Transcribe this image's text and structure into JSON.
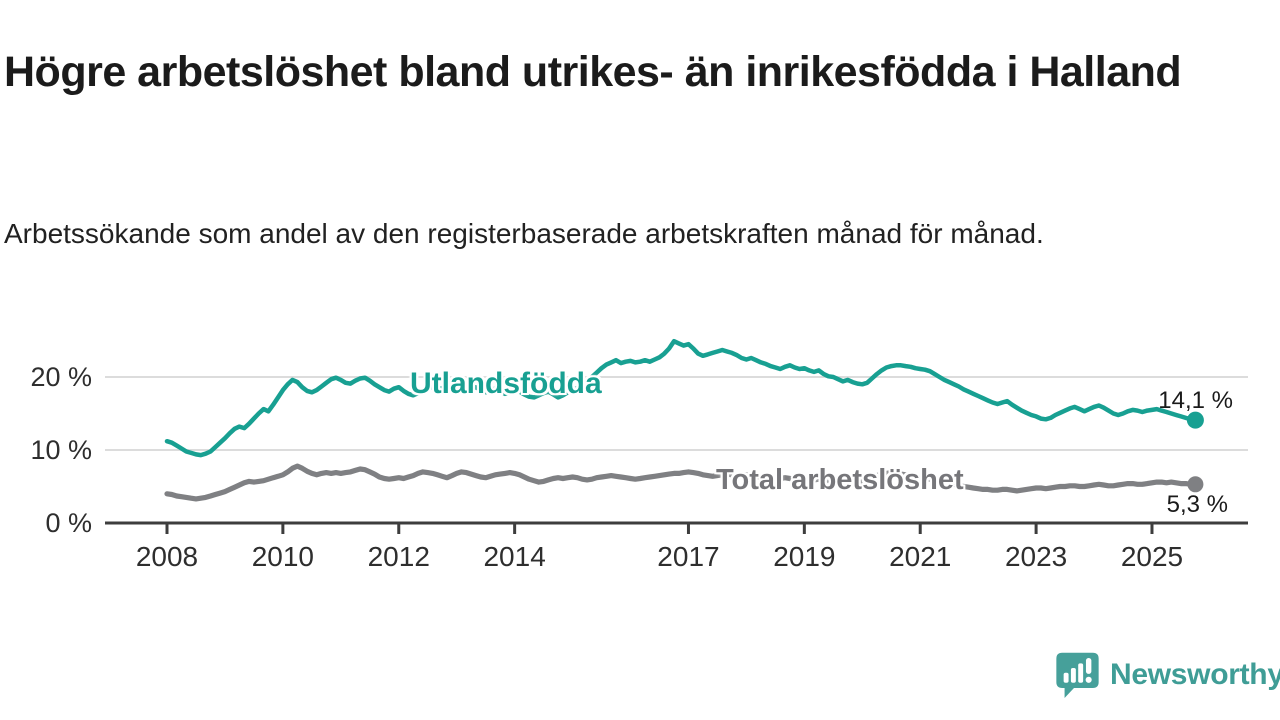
{
  "header": {
    "title": "Högre arbetslöshet bland utrikes- än inrikesfödda i Halland",
    "subtitle": "Arbetssökande som andel av den registerbaserade arbetskraften månad för månad."
  },
  "chart_data": {
    "type": "line",
    "title": "Högre arbetslöshet bland utrikes- än inrikesfödda i Halland",
    "subtitle": "Arbetssökande som andel av den registerbaserade arbetskraften månad för månad.",
    "unit": "%",
    "grid": "horizontal",
    "legend": "inline-labels",
    "x_axis": {
      "tick_labels": [
        "2008",
        "2010",
        "2012",
        "2014",
        "2017",
        "2019",
        "2021",
        "2023",
        "2025"
      ],
      "tick_years": [
        2008,
        2010,
        2012,
        2014,
        2017,
        2019,
        2021,
        2023,
        2025
      ],
      "range": [
        2007.9,
        2026.0
      ],
      "frequency": "monthly"
    },
    "y_axis": {
      "tick_labels": [
        "20 %",
        "10 %",
        "0 %"
      ],
      "tick_values": [
        20,
        10,
        0
      ],
      "range": [
        0,
        26
      ]
    },
    "series": [
      {
        "label": "Utlandsfödda",
        "color": "#18a092",
        "end_label": "14,1 %",
        "last_value": 14.1,
        "first_year": 2008,
        "frequency": "monthly",
        "values": [
          11.2,
          11.0,
          10.6,
          10.2,
          9.8,
          9.6,
          9.4,
          9.3,
          9.5,
          9.8,
          10.4,
          11.0,
          11.6,
          12.3,
          12.9,
          13.2,
          13.0,
          13.6,
          14.3,
          15.0,
          15.6,
          15.3,
          16.2,
          17.2,
          18.2,
          19.0,
          19.6,
          19.3,
          18.6,
          18.1,
          17.9,
          18.2,
          18.7,
          19.2,
          19.7,
          19.9,
          19.6,
          19.2,
          19.1,
          19.5,
          19.8,
          19.9,
          19.5,
          19.0,
          18.6,
          18.2,
          18.0,
          18.4,
          18.6,
          18.1,
          17.7,
          17.5,
          17.8,
          18.2,
          18.5,
          18.6,
          18.3,
          18.5,
          18.8,
          18.6,
          18.9,
          19.0,
          18.7,
          18.4,
          18.6,
          18.2,
          17.9,
          18.2,
          18.4,
          18.1,
          17.7,
          18.0,
          18.2,
          18.0,
          17.6,
          17.3,
          17.2,
          17.5,
          17.8,
          18.0,
          17.6,
          17.2,
          17.5,
          17.9,
          18.2,
          18.5,
          18.9,
          19.4,
          20.0,
          20.6,
          21.2,
          21.7,
          22.0,
          22.3,
          21.9,
          22.1,
          22.2,
          22.0,
          22.1,
          22.3,
          22.1,
          22.4,
          22.7,
          23.2,
          23.9,
          24.9,
          24.6,
          24.3,
          24.5,
          23.9,
          23.2,
          22.9,
          23.1,
          23.3,
          23.5,
          23.7,
          23.5,
          23.3,
          23.0,
          22.6,
          22.4,
          22.6,
          22.3,
          22.0,
          21.8,
          21.5,
          21.3,
          21.1,
          21.4,
          21.6,
          21.3,
          21.1,
          21.2,
          20.9,
          20.7,
          20.9,
          20.4,
          20.1,
          20.0,
          19.7,
          19.4,
          19.6,
          19.3,
          19.1,
          19.0,
          19.2,
          19.8,
          20.4,
          20.9,
          21.3,
          21.5,
          21.6,
          21.6,
          21.5,
          21.4,
          21.2,
          21.1,
          21.0,
          20.8,
          20.4,
          20.0,
          19.6,
          19.3,
          19.0,
          18.7,
          18.3,
          18.0,
          17.7,
          17.4,
          17.1,
          16.8,
          16.5,
          16.3,
          16.5,
          16.7,
          16.2,
          15.8,
          15.4,
          15.1,
          14.8,
          14.6,
          14.3,
          14.2,
          14.4,
          14.8,
          15.1,
          15.4,
          15.7,
          15.9,
          15.6,
          15.3,
          15.6,
          15.9,
          16.1,
          15.8,
          15.4,
          15.0,
          14.8,
          15.0,
          15.3,
          15.5,
          15.4,
          15.2,
          15.4,
          15.5,
          15.6,
          15.4,
          15.2,
          15.0,
          14.8,
          14.6,
          14.4,
          14.2,
          14.1
        ]
      },
      {
        "label": "Total arbetslöshet",
        "color": "#7f8083",
        "end_label": "5,3 %",
        "last_value": 5.3,
        "first_year": 2008,
        "frequency": "monthly",
        "values": [
          4.0,
          3.9,
          3.7,
          3.6,
          3.5,
          3.4,
          3.3,
          3.4,
          3.5,
          3.7,
          3.9,
          4.1,
          4.3,
          4.6,
          4.9,
          5.2,
          5.5,
          5.7,
          5.6,
          5.7,
          5.8,
          6.0,
          6.2,
          6.4,
          6.6,
          7.0,
          7.5,
          7.8,
          7.5,
          7.1,
          6.8,
          6.6,
          6.8,
          6.9,
          6.8,
          6.9,
          6.8,
          6.9,
          7.0,
          7.2,
          7.4,
          7.3,
          7.0,
          6.7,
          6.3,
          6.1,
          6.0,
          6.1,
          6.2,
          6.1,
          6.3,
          6.5,
          6.8,
          7.0,
          6.9,
          6.8,
          6.6,
          6.4,
          6.2,
          6.5,
          6.8,
          7.0,
          6.9,
          6.7,
          6.5,
          6.3,
          6.2,
          6.4,
          6.6,
          6.7,
          6.8,
          6.9,
          6.8,
          6.6,
          6.3,
          6.0,
          5.8,
          5.6,
          5.7,
          5.9,
          6.1,
          6.2,
          6.1,
          6.2,
          6.3,
          6.2,
          6.0,
          5.9,
          6.0,
          6.2,
          6.3,
          6.4,
          6.5,
          6.4,
          6.3,
          6.2,
          6.1,
          6.0,
          6.1,
          6.2,
          6.3,
          6.4,
          6.5,
          6.6,
          6.7,
          6.8,
          6.8,
          6.9,
          7.0,
          6.9,
          6.8,
          6.6,
          6.5,
          6.4,
          6.5,
          6.6,
          6.7,
          6.6,
          6.5,
          6.6,
          6.6,
          6.5,
          6.4,
          6.3,
          6.2,
          6.1,
          6.0,
          6.1,
          6.2,
          6.1,
          6.0,
          6.0,
          6.1,
          6.0,
          5.9,
          6.0,
          5.9,
          5.8,
          5.8,
          5.9,
          5.8,
          5.7,
          5.7,
          5.6,
          5.6,
          5.8,
          6.2,
          6.5,
          6.7,
          6.8,
          6.9,
          6.8,
          6.7,
          6.6,
          6.5,
          6.4,
          6.3,
          6.2,
          6.0,
          5.8,
          5.6,
          5.4,
          5.3,
          5.2,
          5.1,
          5.0,
          4.9,
          4.8,
          4.7,
          4.6,
          4.6,
          4.5,
          4.5,
          4.6,
          4.6,
          4.5,
          4.4,
          4.5,
          4.6,
          4.7,
          4.8,
          4.8,
          4.7,
          4.8,
          4.9,
          5.0,
          5.0,
          5.1,
          5.1,
          5.0,
          5.0,
          5.1,
          5.2,
          5.3,
          5.2,
          5.1,
          5.1,
          5.2,
          5.3,
          5.4,
          5.4,
          5.3,
          5.3,
          5.4,
          5.5,
          5.6,
          5.6,
          5.5,
          5.6,
          5.5,
          5.4,
          5.4,
          5.3,
          5.3
        ]
      }
    ]
  },
  "footer": {
    "brand": "Newsworthy",
    "brand_color": "#3f9d96",
    "logo_icon": "speech-bubble-bar-chart-icon"
  }
}
